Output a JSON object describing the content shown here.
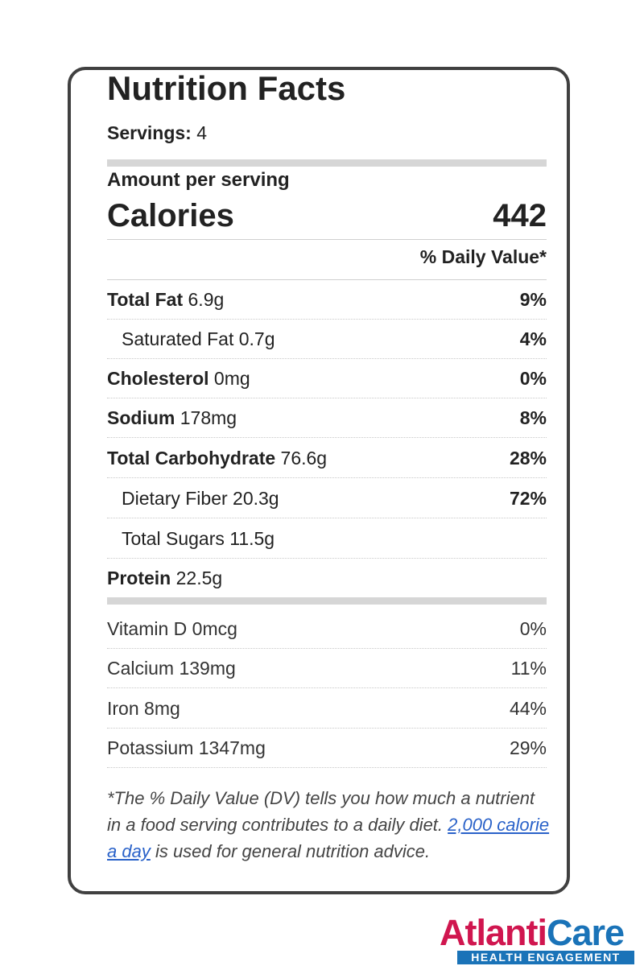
{
  "label": {
    "title": "Nutrition Facts",
    "servings_label": "Servings:",
    "servings_value": "4",
    "amount_per_serving": "Amount per serving",
    "calories_label": "Calories",
    "calories_value": "442",
    "daily_value_header": "% Daily Value*"
  },
  "nutrients": [
    {
      "name": "Total Fat",
      "amount": "6.9g",
      "dv": "9%"
    },
    {
      "name": "Saturated Fat",
      "amount": "0.7g",
      "dv": "4%"
    },
    {
      "name": "Cholesterol",
      "amount": "0mg",
      "dv": "0%"
    },
    {
      "name": "Sodium",
      "amount": "178mg",
      "dv": "8%"
    },
    {
      "name": "Total Carbohydrate",
      "amount": "76.6g",
      "dv": "28%"
    },
    {
      "name": "Dietary Fiber",
      "amount": "20.3g",
      "dv": "72%"
    },
    {
      "name": "Total Sugars",
      "amount": "11.5g",
      "dv": ""
    },
    {
      "name": "Protein",
      "amount": "22.5g",
      "dv": ""
    }
  ],
  "vitamins": [
    {
      "name": "Vitamin D",
      "amount": "0mcg",
      "dv": "0%"
    },
    {
      "name": "Calcium",
      "amount": "139mg",
      "dv": "11%"
    },
    {
      "name": "Iron",
      "amount": "8mg",
      "dv": "44%"
    },
    {
      "name": "Potassium",
      "amount": "1347mg",
      "dv": "29%"
    }
  ],
  "footnote": {
    "text_before": "*The % Daily Value (DV) tells you how much a nutrient in a food serving contributes to a daily diet. ",
    "link_text": "2,000 calorie a day",
    "text_after": " is used for general nutrition advice."
  },
  "logo": {
    "word_part1": "Atlanti",
    "word_part2": "Care",
    "tagline": "HEALTH ENGAGEMENT",
    "colors": {
      "primary_red": "#d0164f",
      "primary_blue": "#1a73b8"
    }
  }
}
